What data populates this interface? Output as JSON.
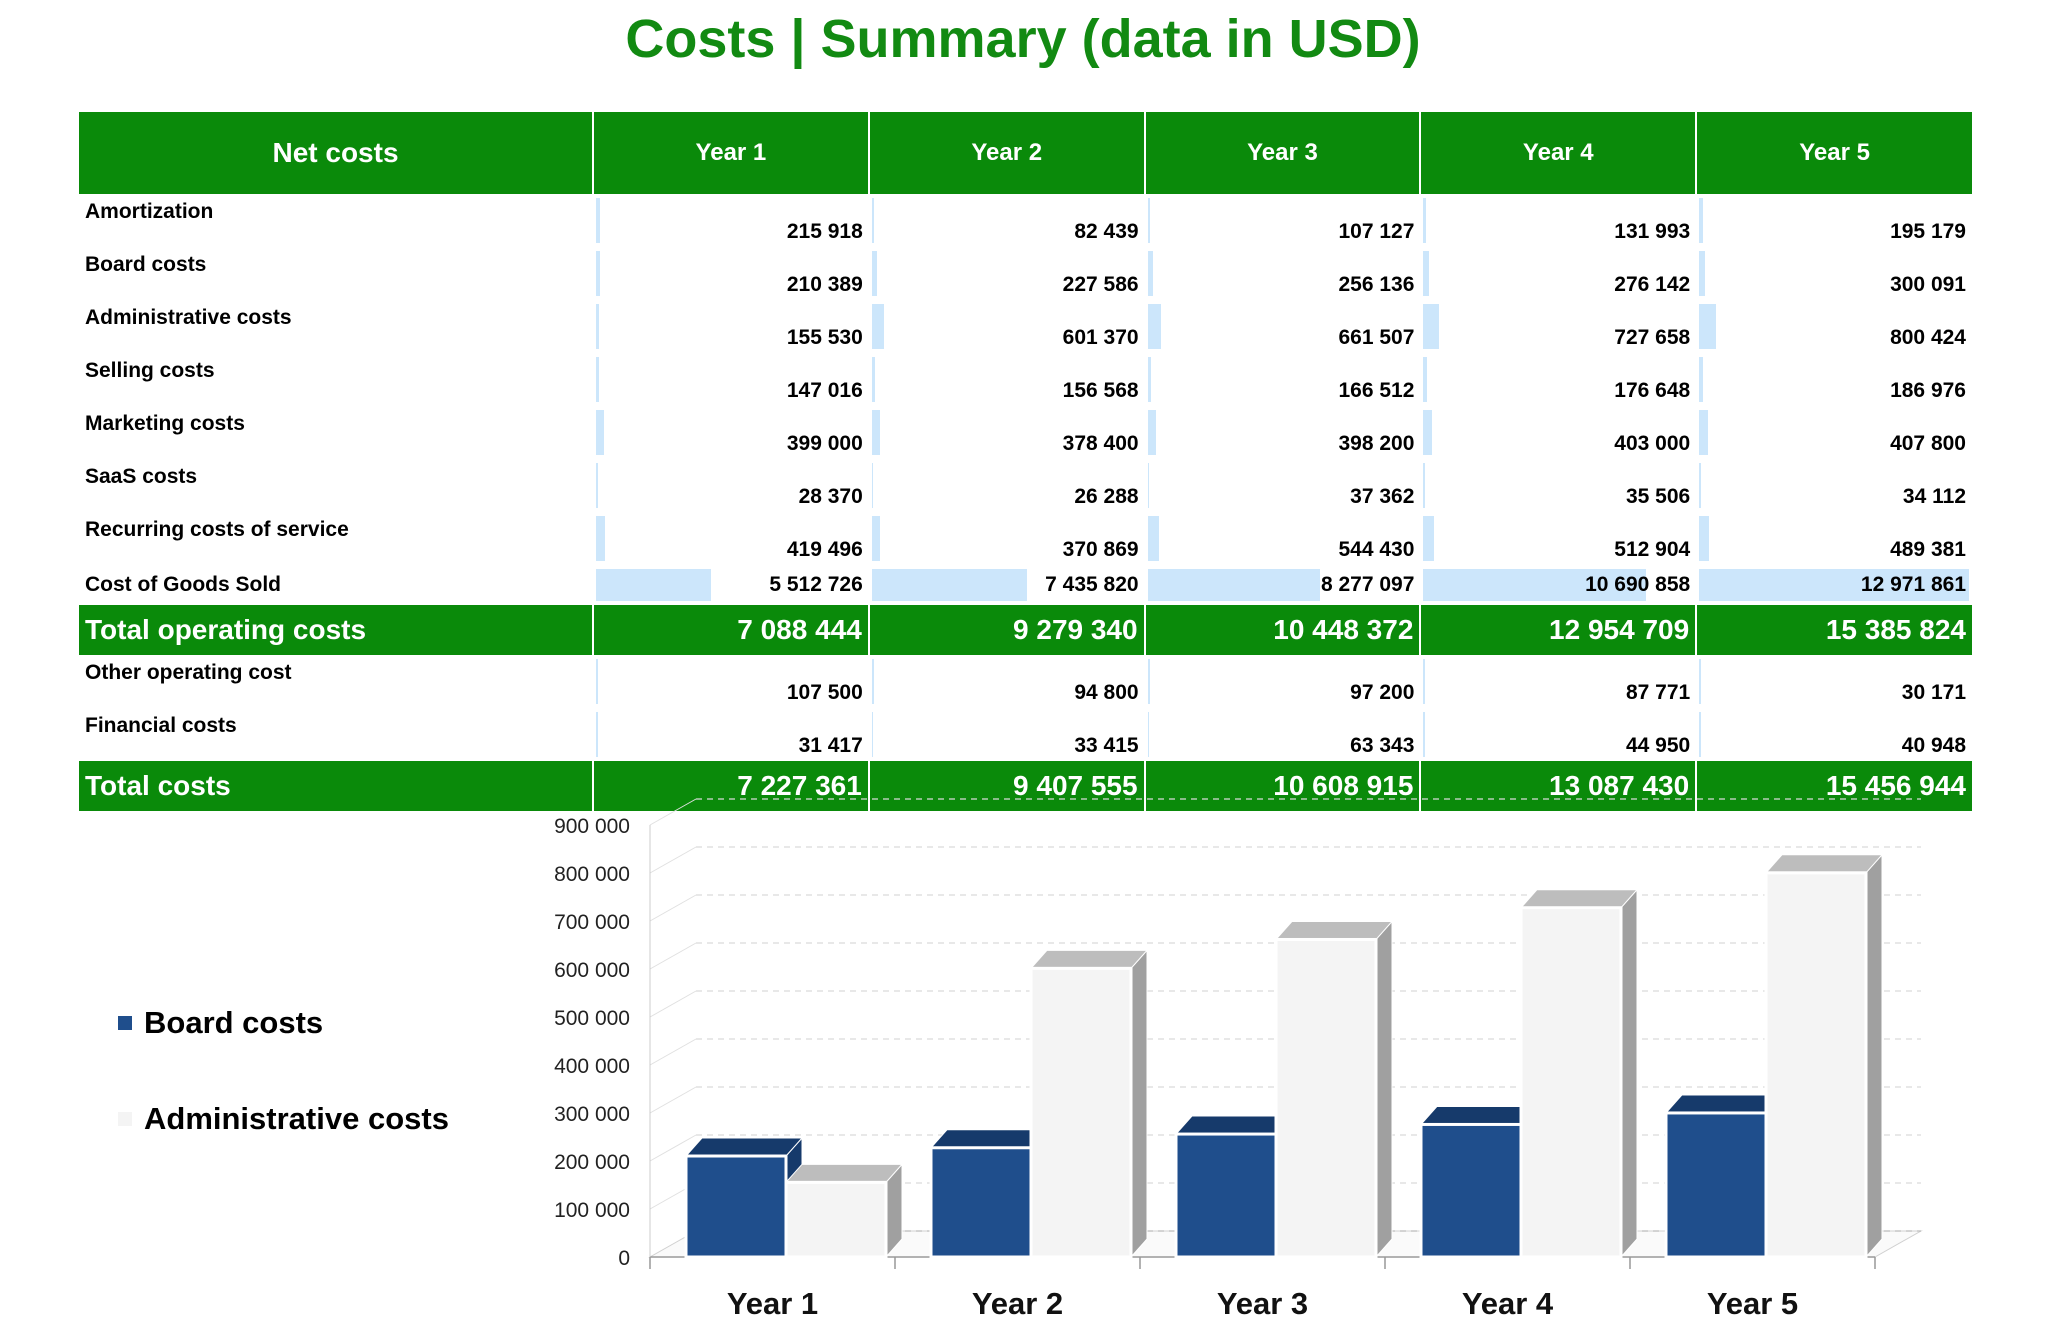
{
  "title": "Costs | Summary (data in USD)",
  "table": {
    "header": [
      "Net costs",
      "Year 1",
      "Year 2",
      "Year 3",
      "Year 4",
      "Year 5"
    ],
    "rows": [
      {
        "label": "Amortization",
        "values": [
          "215 918",
          "82 439",
          "107 127",
          "131 993",
          "195 179"
        ],
        "raw": [
          215918,
          82439,
          107127,
          131993,
          195179
        ]
      },
      {
        "label": "Board costs",
        "values": [
          "210 389",
          "227 586",
          "256 136",
          "276 142",
          "300 091"
        ],
        "raw": [
          210389,
          227586,
          256136,
          276142,
          300091
        ]
      },
      {
        "label": "Administrative costs",
        "values": [
          "155 530",
          "601 370",
          "661 507",
          "727 658",
          "800 424"
        ],
        "raw": [
          155530,
          601370,
          661507,
          727658,
          800424
        ]
      },
      {
        "label": "Selling costs",
        "values": [
          "147 016",
          "156 568",
          "166 512",
          "176 648",
          "186 976"
        ],
        "raw": [
          147016,
          156568,
          166512,
          176648,
          186976
        ]
      },
      {
        "label": "Marketing costs",
        "values": [
          "399 000",
          "378 400",
          "398 200",
          "403 000",
          "407 800"
        ],
        "raw": [
          399000,
          378400,
          398200,
          403000,
          407800
        ]
      },
      {
        "label": "SaaS costs",
        "values": [
          "28 370",
          "26 288",
          "37 362",
          "35 506",
          "34 112"
        ],
        "raw": [
          28370,
          26288,
          37362,
          35506,
          34112
        ]
      },
      {
        "label": "Recurring costs of service",
        "values": [
          "419 496",
          "370 869",
          "544 430",
          "512 904",
          "489 381"
        ],
        "raw": [
          419496,
          370869,
          544430,
          512904,
          489381
        ]
      },
      {
        "label": "Cost of Goods Sold",
        "values": [
          "5 512 726",
          "7 435 820",
          "8 277 097",
          "10 690 858",
          "12 971 861"
        ],
        "raw": [
          5512726,
          7435820,
          8277097,
          10690858,
          12971861
        ]
      }
    ],
    "total_operating": {
      "label": "Total operating costs",
      "values": [
        "7 088 444",
        "9 279 340",
        "10 448 372",
        "12 954 709",
        "15 385 824"
      ]
    },
    "rows2": [
      {
        "label": "Other operating cost",
        "values": [
          "107 500",
          "94 800",
          "97 200",
          "87 771",
          "30 171"
        ],
        "raw": [
          107500,
          94800,
          97200,
          87771,
          30171
        ]
      },
      {
        "label": "Financial costs",
        "values": [
          "31 417",
          "33 415",
          "63 343",
          "44 950",
          "40 948"
        ],
        "raw": [
          31417,
          33415,
          63343,
          44950,
          40948
        ]
      }
    ],
    "total": {
      "label": "Total costs",
      "values": [
        "7 227 361",
        "9 407 555",
        "10 608 915",
        "13 087 430",
        "15 456 944"
      ]
    }
  },
  "colors": {
    "green": "#0a8a0a",
    "title_green": "#128a12",
    "databar": "#cce6fb",
    "board": "#1f4e8c",
    "admin": "#f4f4f4"
  },
  "chart_data": {
    "type": "bar",
    "categories": [
      "Year 1",
      "Year 2",
      "Year 3",
      "Year 4",
      "Year 5"
    ],
    "series": [
      {
        "name": "Board costs",
        "values": [
          210389,
          227586,
          256136,
          276142,
          300091
        ],
        "color": "#1f4e8c"
      },
      {
        "name": "Administrative costs",
        "values": [
          155530,
          601370,
          661507,
          727658,
          800424
        ],
        "color": "#f4f4f4"
      }
    ],
    "yticks": [
      "900 000",
      "800 000",
      "700 000",
      "600 000",
      "500 000",
      "400 000",
      "300 000",
      "200 000",
      "100 000",
      "0"
    ],
    "ylim": [
      0,
      900000
    ],
    "legend_position": "left",
    "style": "3d-clustered-column"
  }
}
